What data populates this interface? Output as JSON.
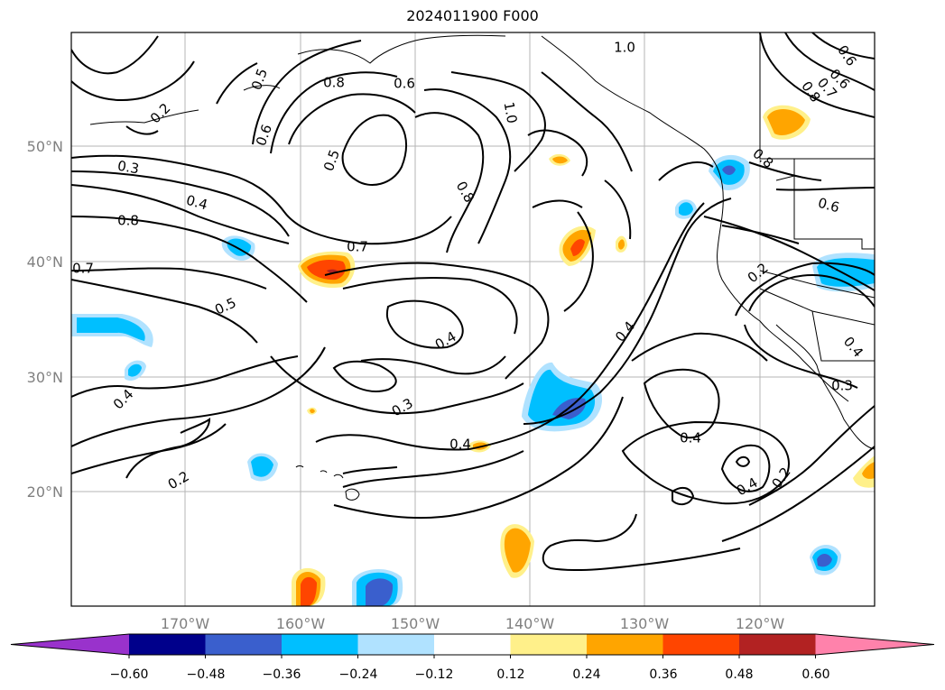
{
  "title": "2024011900 F000",
  "map": {
    "lat_ticks": [
      "50°N",
      "40°N",
      "30°N",
      "20°N"
    ],
    "lon_ticks": [
      "170°W",
      "160°W",
      "150°W",
      "140°W",
      "130°W",
      "120°W"
    ],
    "grid": true
  },
  "contour_labels": [
    {
      "text": "1.0",
      "rot": 0
    },
    {
      "text": "0.6",
      "rot": 55
    },
    {
      "text": "0.7",
      "rot": 50
    },
    {
      "text": "0.8",
      "rot": 55
    },
    {
      "text": "0.6",
      "rot": 45
    },
    {
      "text": "0.2",
      "rot": -45
    },
    {
      "text": "0.5",
      "rot": -70
    },
    {
      "text": "0.8",
      "rot": 0
    },
    {
      "text": "0.6",
      "rot": 0
    },
    {
      "text": "1.0",
      "rot": 80
    },
    {
      "text": "0.6",
      "rot": -70
    },
    {
      "text": "0.3",
      "rot": 10
    },
    {
      "text": "0.5",
      "rot": -70
    },
    {
      "text": "0.8",
      "rot": 60
    },
    {
      "text": "0.8",
      "rot": 40
    },
    {
      "text": "0.4",
      "rot": 15
    },
    {
      "text": "0.8",
      "rot": 0
    },
    {
      "text": "0.6",
      "rot": 15
    },
    {
      "text": "0.7",
      "rot": 0
    },
    {
      "text": "0.7",
      "rot": 0
    },
    {
      "text": "0.2",
      "rot": -40
    },
    {
      "text": "0.5",
      "rot": -25
    },
    {
      "text": "0.4",
      "rot": -30
    },
    {
      "text": "0.4",
      "rot": -50
    },
    {
      "text": "0.4",
      "rot": 50
    },
    {
      "text": "0.3",
      "rot": -30
    },
    {
      "text": "0.3",
      "rot": 0
    },
    {
      "text": "0.4",
      "rot": -45
    },
    {
      "text": "0.4",
      "rot": 0
    },
    {
      "text": "0.4",
      "rot": 0
    },
    {
      "text": "0.4",
      "rot": -30
    },
    {
      "text": "0.2",
      "rot": -55
    },
    {
      "text": "0.2",
      "rot": -30
    }
  ],
  "colorbar": {
    "ticks": [
      "−0.60",
      "−0.48",
      "−0.36",
      "−0.24",
      "−0.12",
      "0.12",
      "0.24",
      "0.36",
      "0.48",
      "0.60"
    ],
    "colors": [
      "#9932cc",
      "#00008b",
      "#3a5fcd",
      "#00bfff",
      "#b0e2ff",
      "#ffffff",
      "#fff08a",
      "#ffa500",
      "#ff4500",
      "#b22222",
      "#ff82ab"
    ]
  }
}
